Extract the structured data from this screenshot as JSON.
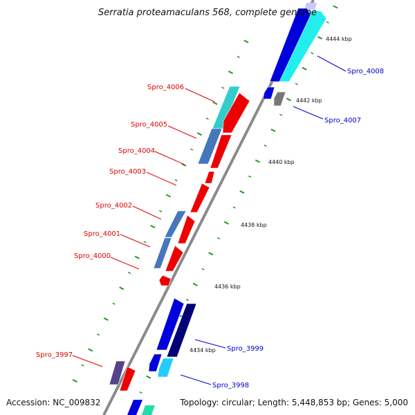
{
  "title": "Serratia proteamaculans 568, complete genome",
  "footer": {
    "accession": "Accession: NC_009832",
    "topology": "Topology: circular; Length: 5,448,853 bp; Genes: 5,000"
  },
  "colors": {
    "backbone": "#8a8a8a",
    "forward_label": "#dd0000",
    "reverse_label": "#0000cc",
    "tick": "#229922"
  },
  "ticks": [
    "4444 kbp",
    "4442 kbp",
    "4440 kbp",
    "4438 kbp",
    "4436 kbp",
    "4434 kbp"
  ],
  "genes": [
    {
      "name": "Spro_4008",
      "strand": "reverse",
      "color": "#0000cc"
    },
    {
      "name": "Spro_4007",
      "strand": "reverse",
      "color": "#0000cc"
    },
    {
      "name": "Spro_4006",
      "strand": "forward",
      "color": "#dd0000"
    },
    {
      "name": "Spro_4005",
      "strand": "forward",
      "color": "#dd0000"
    },
    {
      "name": "Spro_4004",
      "strand": "forward",
      "color": "#dd0000"
    },
    {
      "name": "Spro_4003",
      "strand": "forward",
      "color": "#dd0000"
    },
    {
      "name": "Spro_4002",
      "strand": "forward",
      "color": "#dd0000"
    },
    {
      "name": "Spro_4001",
      "strand": "forward",
      "color": "#dd0000"
    },
    {
      "name": "Spro_4000",
      "strand": "forward",
      "color": "#dd0000"
    },
    {
      "name": "Spro_3999",
      "strand": "reverse",
      "color": "#0000cc"
    },
    {
      "name": "Spro_3998",
      "strand": "reverse",
      "color": "#0000cc"
    },
    {
      "name": "Spro_3997",
      "strand": "forward",
      "color": "#dd0000"
    }
  ]
}
